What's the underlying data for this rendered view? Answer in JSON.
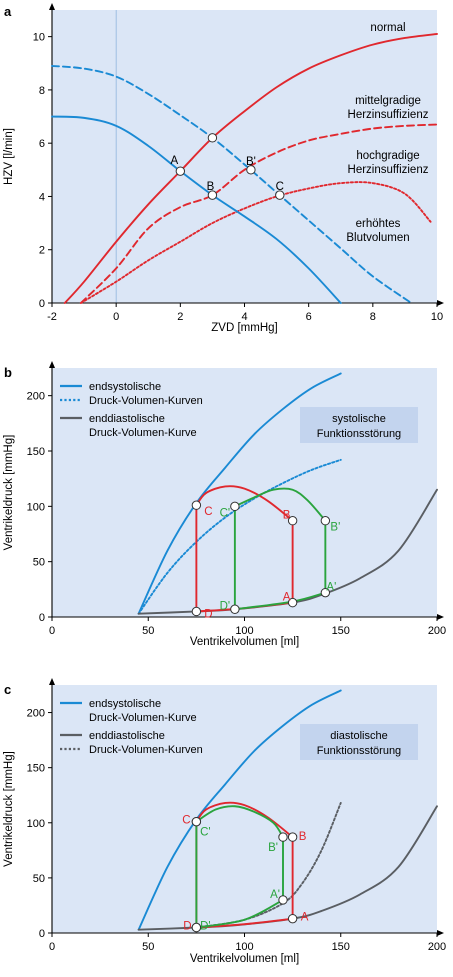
{
  "colors": {
    "blue": "#1a8ad4",
    "red": "#e0282e",
    "green": "#2aa43e",
    "gray": "#5a5e63",
    "plot_bg": "#dbe6f6",
    "box_bg": "#c3d4ee"
  },
  "chart_data": [
    {
      "panel_label": "a",
      "type": "line",
      "xlabel": "ZVD [mmHg]",
      "ylabel": "HZV [l/min]",
      "xlim": [
        -2,
        10
      ],
      "ylim": [
        0,
        11
      ],
      "xticks": [
        "-2",
        "0",
        "2",
        "4",
        "6",
        "8",
        "10"
      ],
      "yticks": [
        "0",
        "2",
        "4",
        "6",
        "8",
        "10"
      ],
      "grid": false,
      "series": [
        {
          "color": "red",
          "dash": "solid",
          "points": [
            [
              -1.6,
              0
            ],
            [
              -1,
              0.8
            ],
            [
              0,
              2.3
            ],
            [
              1,
              3.7
            ],
            [
              2,
              4.95
            ],
            [
              3,
              6.2
            ],
            [
              4,
              7.2
            ],
            [
              5,
              8.1
            ],
            [
              6,
              8.8
            ],
            [
              7,
              9.3
            ],
            [
              8,
              9.7
            ],
            [
              9,
              9.95
            ],
            [
              10,
              10.1
            ]
          ]
        },
        {
          "color": "red",
          "dash": "dashed",
          "points": [
            [
              -1.1,
              0
            ],
            [
              0,
              1.3
            ],
            [
              1,
              2.8
            ],
            [
              2,
              3.6
            ],
            [
              3,
              4.05
            ],
            [
              4,
              5
            ],
            [
              5,
              5.65
            ],
            [
              6,
              6.1
            ],
            [
              7,
              6.35
            ],
            [
              8,
              6.55
            ],
            [
              9,
              6.65
            ],
            [
              10,
              6.7
            ]
          ]
        },
        {
          "color": "red",
          "dash": "dotted",
          "points": [
            [
              -1.1,
              0
            ],
            [
              0,
              0.8
            ],
            [
              1,
              1.6
            ],
            [
              2,
              2.3
            ],
            [
              3,
              3
            ],
            [
              4,
              3.55
            ],
            [
              5,
              4
            ],
            [
              6,
              4.3
            ],
            [
              7,
              4.5
            ],
            [
              8,
              4.5
            ],
            [
              9,
              4.1
            ],
            [
              9.8,
              3.05
            ]
          ]
        },
        {
          "color": "blue",
          "dash": "solid",
          "points": [
            [
              -2,
              7
            ],
            [
              -1,
              6.95
            ],
            [
              0,
              6.65
            ],
            [
              1,
              5.9
            ],
            [
              2,
              4.95
            ],
            [
              3,
              4.05
            ],
            [
              4,
              3.25
            ],
            [
              5,
              2.4
            ],
            [
              6,
              1.3
            ],
            [
              7,
              0
            ]
          ]
        },
        {
          "color": "blue",
          "dash": "dashed",
          "points": [
            [
              -2,
              8.9
            ],
            [
              -1,
              8.8
            ],
            [
              0,
              8.5
            ],
            [
              1,
              7.85
            ],
            [
              2,
              7.05
            ],
            [
              3,
              6.2
            ],
            [
              4,
              5.2
            ],
            [
              5,
              4.15
            ],
            [
              6,
              3.1
            ],
            [
              7,
              2.05
            ],
            [
              8,
              1
            ],
            [
              9.2,
              0
            ]
          ]
        }
      ],
      "curve_labels": [
        "normal",
        "mittelgradige Herzinsuffizienz",
        "hochgradige Herzinsuffizienz",
        "erhöhtes Blutvolumen"
      ],
      "points": [
        {
          "label": "A",
          "x": 2,
          "y": 4.95
        },
        {
          "label": "B",
          "x": 3,
          "y": 4.05
        },
        {
          "label": "B'",
          "x": 4.2,
          "y": 5.0
        },
        {
          "label": "C",
          "x": 5.1,
          "y": 4.05
        },
        {
          "label": "",
          "x": 3,
          "y": 6.2
        }
      ]
    },
    {
      "panel_label": "b",
      "type": "line",
      "xlabel": "Ventrikelvolumen [ml]",
      "ylabel": "Ventrikeldruck [mmHg]",
      "xlim": [
        0,
        200
      ],
      "ylim": [
        0,
        225
      ],
      "xticks": [
        "0",
        "50",
        "100",
        "150",
        "200"
      ],
      "yticks": [
        "0",
        "50",
        "100",
        "150",
        "200"
      ],
      "grid": false,
      "legend": [
        {
          "text": "endsystolische Druck-Volumen-Kurven",
          "color": "blue"
        },
        {
          "text": "enddiastolische Druck-Volumen-Kurve",
          "color": "gray"
        }
      ],
      "annotation": "systolische Funktionsstörung",
      "series": [
        {
          "color": "blue",
          "dash": "solid",
          "points": [
            [
              45,
              3
            ],
            [
              60,
              60
            ],
            [
              75,
              103
            ],
            [
              90,
              135
            ],
            [
              105,
              165
            ],
            [
              120,
              188
            ],
            [
              135,
              207
            ],
            [
              150,
              220
            ]
          ]
        },
        {
          "color": "blue",
          "dash": "dotted",
          "points": [
            [
              45,
              3
            ],
            [
              60,
              40
            ],
            [
              75,
              68
            ],
            [
              90,
              90
            ],
            [
              105,
              107
            ],
            [
              120,
              121
            ],
            [
              135,
              133
            ],
            [
              150,
              142
            ]
          ]
        },
        {
          "color": "gray",
          "dash": "solid",
          "points": [
            [
              45,
              3
            ],
            [
              75,
              5
            ],
            [
              95,
              7
            ],
            [
              125,
              13
            ],
            [
              140,
              20
            ],
            [
              160,
              35
            ],
            [
              180,
              60
            ],
            [
              200,
              115
            ]
          ]
        },
        {
          "color": "red",
          "dash": "solid",
          "points": [
            [
              75,
              5
            ],
            [
              75,
              101
            ],
            [
              80,
              112
            ],
            [
              90,
              118
            ],
            [
              100,
              116
            ],
            [
              112,
              105
            ],
            [
              125,
              87
            ],
            [
              125,
              13
            ],
            [
              100,
              8
            ],
            [
              75,
              5
            ]
          ]
        },
        {
          "color": "green",
          "dash": "solid",
          "points": [
            [
              95,
              7
            ],
            [
              95,
              100
            ],
            [
              105,
              108
            ],
            [
              115,
              115
            ],
            [
              125,
              115
            ],
            [
              133,
              105
            ],
            [
              142,
              87
            ],
            [
              142,
              22
            ],
            [
              125,
              14
            ],
            [
              95,
              7
            ]
          ]
        }
      ],
      "points": [
        {
          "label": "A",
          "x": 125,
          "y": 13
        },
        {
          "label": "B",
          "x": 125,
          "y": 87
        },
        {
          "label": "C",
          "x": 75,
          "y": 101
        },
        {
          "label": "D",
          "x": 75,
          "y": 5
        },
        {
          "label": "A'",
          "x": 142,
          "y": 22
        },
        {
          "label": "B'",
          "x": 142,
          "y": 87
        },
        {
          "label": "C'",
          "x": 95,
          "y": 100
        },
        {
          "label": "D'",
          "x": 95,
          "y": 7
        }
      ]
    },
    {
      "panel_label": "c",
      "type": "line",
      "xlabel": "Ventrikelvolumen [ml]",
      "ylabel": "Ventrikeldruck [mmHg]",
      "xlim": [
        0,
        200
      ],
      "ylim": [
        0,
        225
      ],
      "xticks": [
        "0",
        "50",
        "100",
        "150",
        "200"
      ],
      "yticks": [
        "0",
        "50",
        "100",
        "150",
        "200"
      ],
      "grid": false,
      "legend": [
        {
          "text": "endsystolische Druck-Volumen-Kurve",
          "color": "blue"
        },
        {
          "text": "enddiastolische Druck-Volumen-Kurven",
          "color": "gray"
        }
      ],
      "annotation": "diastolische Funktionsstörung",
      "series": [
        {
          "color": "blue",
          "dash": "solid",
          "points": [
            [
              45,
              3
            ],
            [
              60,
              60
            ],
            [
              75,
              103
            ],
            [
              90,
              135
            ],
            [
              105,
              165
            ],
            [
              120,
              188
            ],
            [
              135,
              207
            ],
            [
              150,
              220
            ]
          ]
        },
        {
          "color": "gray",
          "dash": "solid",
          "points": [
            [
              45,
              3
            ],
            [
              75,
              5
            ],
            [
              95,
              7
            ],
            [
              125,
              13
            ],
            [
              140,
              20
            ],
            [
              160,
              35
            ],
            [
              180,
              60
            ],
            [
              200,
              115
            ]
          ]
        },
        {
          "color": "gray",
          "dash": "dotted",
          "points": [
            [
              75,
              5
            ],
            [
              100,
              12
            ],
            [
              120,
              27
            ],
            [
              130,
              45
            ],
            [
              140,
              75
            ],
            [
              150,
              118
            ]
          ]
        },
        {
          "color": "red",
          "dash": "solid",
          "points": [
            [
              75,
              5
            ],
            [
              75,
              101
            ],
            [
              80,
              112
            ],
            [
              90,
              118
            ],
            [
              100,
              116
            ],
            [
              112,
              105
            ],
            [
              125,
              87
            ],
            [
              125,
              13
            ],
            [
              100,
              8
            ],
            [
              75,
              5
            ]
          ]
        },
        {
          "color": "green",
          "dash": "solid",
          "points": [
            [
              75,
              5
            ],
            [
              75,
              101
            ],
            [
              85,
              112
            ],
            [
              95,
              115
            ],
            [
              105,
              110
            ],
            [
              115,
              100
            ],
            [
              120,
              87
            ],
            [
              120,
              30
            ],
            [
              100,
              12
            ],
            [
              75,
              5
            ]
          ]
        }
      ],
      "points": [
        {
          "label": "A",
          "x": 125,
          "y": 13
        },
        {
          "label": "B",
          "x": 125,
          "y": 87
        },
        {
          "label": "C",
          "x": 75,
          "y": 101
        },
        {
          "label": "D",
          "x": 75,
          "y": 5
        },
        {
          "label": "A'",
          "x": 120,
          "y": 30
        },
        {
          "label": "B'",
          "x": 120,
          "y": 87
        },
        {
          "label": "C'",
          "x": 75,
          "y": 101
        },
        {
          "label": "D'",
          "x": 75,
          "y": 5
        }
      ]
    }
  ]
}
